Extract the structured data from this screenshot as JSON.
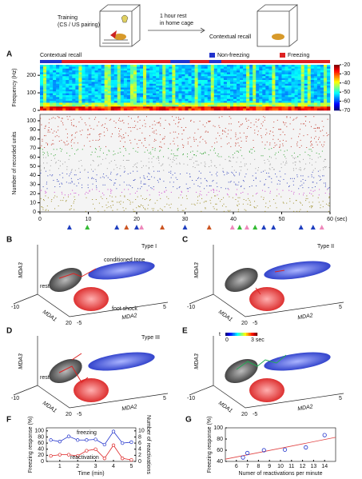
{
  "header": {
    "training": "Training",
    "training_sub": "(CS / US pairing)",
    "rest": "1 hour rest",
    "rest_sub": "in home cage",
    "recall": "Contextual recall"
  },
  "panel_a": {
    "label": "A",
    "title": "Contextual recall",
    "legend": [
      {
        "name": "Non-freezing",
        "color": "#2233cc"
      },
      {
        "name": "Freezing",
        "color": "#dd2222"
      }
    ],
    "nonfreezing_intervals": [
      [
        0,
        4.5
      ],
      [
        27,
        31
      ],
      [
        35,
        37.5
      ]
    ],
    "xlim": [
      0,
      60
    ],
    "xticks": [
      0,
      10,
      20,
      30,
      40,
      50,
      60
    ],
    "xunit": "(sec)",
    "spectrogram": {
      "ylabel": "Frequency (Hz)",
      "ylim": [
        0,
        260
      ],
      "yticks": [
        0,
        100,
        200
      ],
      "colorbar": {
        "lim": [
          -70,
          -20
        ],
        "ticks": [
          -20,
          -30,
          -40,
          -50,
          -60,
          -70
        ]
      }
    },
    "raster": {
      "ylabel": "Number of recorded units",
      "ylim": [
        0,
        107
      ],
      "yticks": [
        0,
        10,
        20,
        30,
        40,
        50,
        60,
        70,
        80,
        90,
        100
      ],
      "groups": [
        {
          "from": 70,
          "to": 105,
          "color": "#c0392b"
        },
        {
          "from": 60,
          "to": 70,
          "color": "#2ca02c"
        },
        {
          "from": 45,
          "to": 60,
          "color": "#9a9a9a"
        },
        {
          "from": 25,
          "to": 45,
          "color": "#3344bb"
        },
        {
          "from": 18,
          "to": 25,
          "color": "#cc44cc"
        },
        {
          "from": 0,
          "to": 18,
          "color": "#9a8a20"
        }
      ]
    },
    "events": {
      "x": [
        6.1,
        9.8,
        15.9,
        17.9,
        20,
        21,
        25.3,
        30,
        35,
        39.8,
        41.3,
        42.8,
        44.5,
        46.3,
        48.3,
        54,
        56.5,
        58.3
      ],
      "colors": [
        "#1f3fbf",
        "#33bb33",
        "#1f3fbf",
        "#cc5522",
        "#1f3fbf",
        "#ee88bb",
        "#cc5522",
        "#1f3fbf",
        "#cc5522",
        "#ee88bb",
        "#33bb33",
        "#ee88bb",
        "#33bb33",
        "#1f3fbf",
        "#1f3fbf",
        "#1f3fbf",
        "#1f3fbf",
        "#ee88bb"
      ]
    }
  },
  "panels_3d": [
    {
      "label": "B",
      "type": "Type I",
      "rest": "rest",
      "tone": "conditioned tone",
      "shock": "foot shock",
      "axes": [
        "MDA1",
        "MDA2",
        "MDA3"
      ],
      "ticks": [
        "-10",
        "20",
        "-5",
        "5"
      ]
    },
    {
      "label": "C",
      "type": "Type II",
      "axes": [
        "MDA1",
        "MDA2",
        "MDA3"
      ],
      "ticks": [
        "-10",
        "20",
        "-5",
        "5"
      ]
    },
    {
      "label": "D",
      "type": "Type III",
      "rest": "rest",
      "axes": [
        "MDA1",
        "MDA2",
        "MDA3"
      ],
      "ticks": [
        "-10",
        "20",
        "-5",
        "5"
      ]
    },
    {
      "label": "E",
      "axes": [
        "MDA1",
        "MDA2",
        "MDA3"
      ],
      "ticks": [
        "-10",
        "20",
        "-5",
        "5"
      ],
      "colorbar": [
        "t",
        "0",
        "3 sec"
      ]
    }
  ],
  "chart_data": [
    {
      "type": "line",
      "panel_label": "F",
      "xlabel": "Time (min)",
      "ylabel": "Freezing response (%)",
      "y2label": "Number of reactivations",
      "x": [
        0.5,
        1,
        1.5,
        2,
        2.5,
        3,
        3.5,
        4,
        4.5,
        5
      ],
      "xlim": [
        0.25,
        5.25
      ],
      "xticks": [
        1,
        2,
        3,
        4,
        5
      ],
      "ylim": [
        0,
        110
      ],
      "yticks": [
        0,
        20,
        40,
        60,
        80,
        100
      ],
      "y2lim": [
        0,
        11
      ],
      "y2ticks": [
        0,
        2,
        4,
        6,
        8,
        10
      ],
      "series": [
        {
          "name": "freezing",
          "color": "#2233cc",
          "values": [
            70,
            65,
            82,
            70,
            70,
            72,
            55,
            98,
            60,
            63
          ]
        },
        {
          "name": "reactivation",
          "color": "#dd2222",
          "axis": "y2",
          "values": [
            1.8,
            2.2,
            2.2,
            1.8,
            3.5,
            4,
            1,
            5.3,
            1,
            0.5
          ]
        }
      ]
    },
    {
      "type": "scatter",
      "panel_label": "G",
      "xlabel": "Numer of reactivations per minute",
      "ylabel": "Freezing response (%)",
      "x": [
        6.6,
        7,
        8.5,
        10.4,
        12.3,
        14
      ],
      "values": [
        47,
        55,
        60,
        61,
        65,
        87
      ],
      "color": "#2233cc",
      "xlim": [
        5,
        15
      ],
      "xticks": [
        6,
        7,
        8,
        9,
        10,
        11,
        12,
        13,
        14
      ],
      "ylim": [
        40,
        100
      ],
      "yticks": [
        40,
        60,
        80,
        100
      ],
      "fit": {
        "x": [
          5,
          15
        ],
        "y": [
          44,
          83
        ],
        "color": "#e04040"
      }
    }
  ]
}
